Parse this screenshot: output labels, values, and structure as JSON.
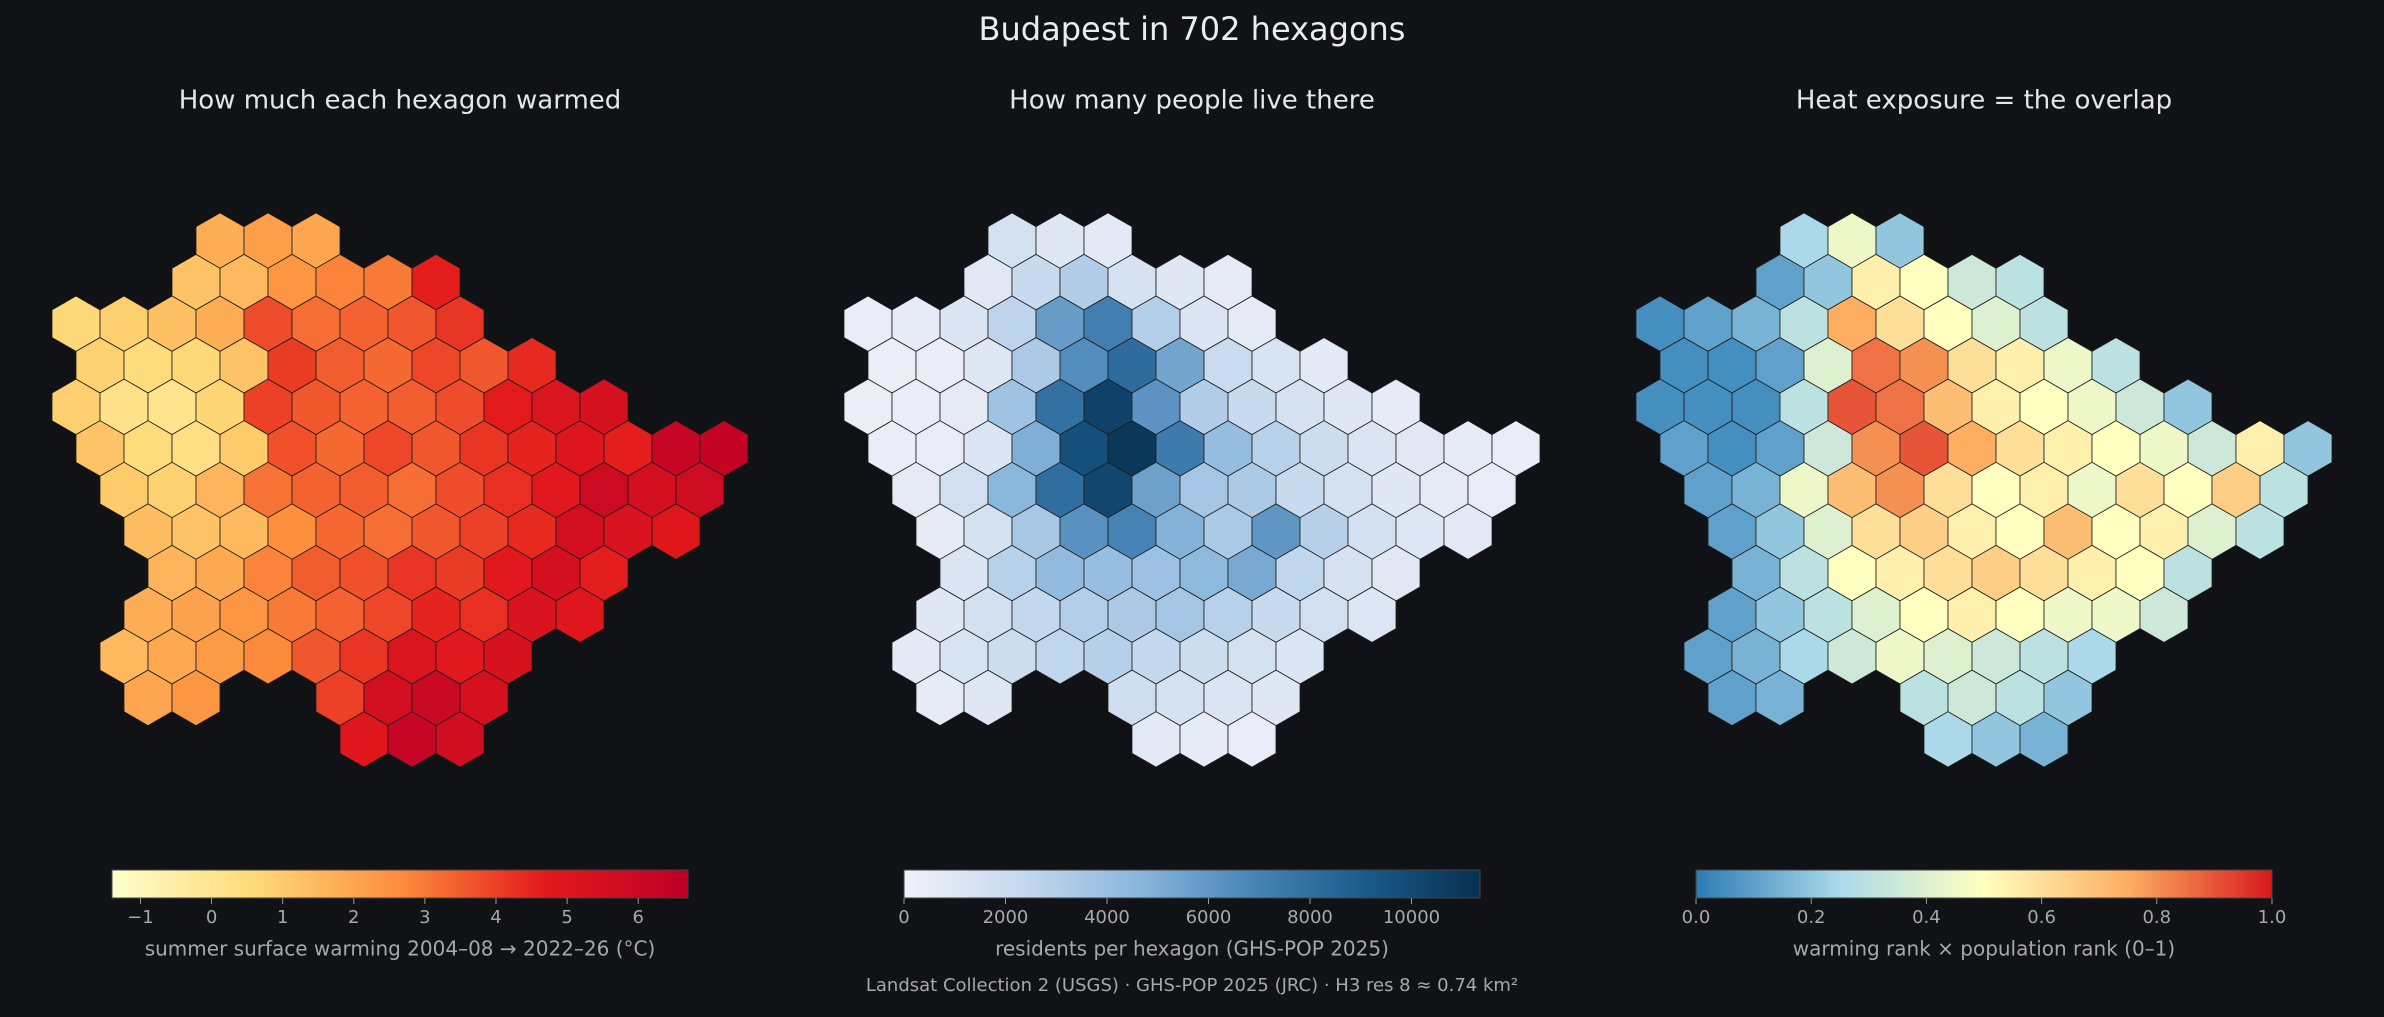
{
  "title": "Budapest in 702 hexagons",
  "source": "Landsat Collection 2 (USGS) · GHS-POP 2025 (JRC) · H3 res 8 ≈ 0.74 km²",
  "chart_data": [
    {
      "type": "hexmap",
      "title": "How much each hexagon warmed",
      "colorbar_label": "summer surface warming 2004–08 → 2022–26 (°C)",
      "colormap": [
        "#ffffcc",
        "#fed976",
        "#fd8d3c",
        "#e31a1c",
        "#bd0026"
      ],
      "xlim": [
        -1.4,
        6.7
      ],
      "xticks": [
        {
          "value": -1,
          "label": "−1"
        },
        0,
        1,
        2,
        3,
        4,
        5,
        6
      ],
      "values": [
        [
          null,
          null,
          null,
          1.8,
          2.2,
          2.0,
          null,
          null,
          null,
          null,
          null,
          null,
          null,
          null
        ],
        [
          null,
          null,
          1.2,
          1.5,
          2.4,
          2.8,
          3.0,
          4.6,
          null,
          null,
          null,
          null,
          null,
          null
        ],
        [
          0.6,
          0.9,
          1.3,
          1.8,
          3.8,
          3.2,
          3.4,
          3.6,
          4.2,
          null,
          null,
          null,
          null,
          null
        ],
        [
          0.8,
          0.5,
          0.6,
          1.2,
          4.1,
          3.5,
          3.3,
          3.9,
          3.6,
          4.4,
          null,
          null,
          null,
          null
        ],
        [
          0.9,
          0.2,
          0.1,
          0.7,
          4.0,
          3.6,
          3.4,
          3.5,
          3.8,
          4.7,
          5.1,
          5.4,
          null,
          null
        ],
        [
          1.2,
          0.5,
          0.3,
          1.0,
          3.7,
          3.3,
          3.9,
          3.6,
          4.2,
          4.5,
          5.0,
          4.6,
          6.2,
          6.4
        ],
        [
          null,
          1.0,
          0.8,
          1.6,
          3.1,
          3.4,
          3.5,
          3.2,
          3.8,
          4.3,
          4.8,
          5.9,
          5.5,
          5.8
        ],
        [
          null,
          1.4,
          1.2,
          1.5,
          2.6,
          3.3,
          3.2,
          3.6,
          4.0,
          4.4,
          5.6,
          5.2,
          4.9,
          null
        ],
        [
          null,
          null,
          1.6,
          1.9,
          2.8,
          3.5,
          3.7,
          4.2,
          4.1,
          4.8,
          5.5,
          4.6,
          null,
          null
        ],
        [
          null,
          1.8,
          2.1,
          2.4,
          3.0,
          3.4,
          3.9,
          4.5,
          4.3,
          5.2,
          4.9,
          null,
          null,
          null
        ],
        [
          null,
          1.5,
          1.9,
          2.3,
          2.7,
          3.6,
          4.2,
          5.1,
          4.8,
          5.3,
          null,
          null,
          null,
          null
        ],
        [
          null,
          2.0,
          2.4,
          null,
          null,
          4.0,
          5.6,
          6.0,
          5.4,
          null,
          null,
          null,
          null,
          null
        ],
        [
          null,
          null,
          null,
          null,
          null,
          null,
          4.9,
          6.2,
          5.7,
          null,
          null,
          null,
          null,
          null
        ]
      ]
    },
    {
      "type": "hexmap",
      "title": "How many people live there",
      "colorbar_label": "residents per hexagon (GHS-POP 2025)",
      "colormap": [
        "#f0f0f8",
        "#c6d9ee",
        "#8cb8dd",
        "#4a86b8",
        "#1a5b8c",
        "#08304f"
      ],
      "xlim": [
        0,
        11350
      ],
      "xticks": [
        0,
        2000,
        4000,
        6000,
        8000,
        10000
      ],
      "values": [
        [
          null,
          null,
          null,
          1500,
          900,
          700,
          null,
          null,
          null,
          null,
          null,
          null,
          null,
          null
        ],
        [
          null,
          null,
          800,
          2200,
          3100,
          1400,
          900,
          600,
          null,
          null,
          null,
          null,
          null,
          null
        ],
        [
          300,
          500,
          1200,
          2600,
          5800,
          7200,
          3000,
          1200,
          600,
          null,
          null,
          null,
          null,
          null
        ],
        [
          200,
          300,
          900,
          3300,
          6500,
          8200,
          5400,
          2100,
          1300,
          700,
          null,
          null,
          null,
          null
        ],
        [
          200,
          300,
          600,
          3800,
          7900,
          10400,
          6200,
          3100,
          2200,
          1400,
          900,
          500,
          null,
          null
        ],
        [
          300,
          400,
          1100,
          5000,
          9700,
          11000,
          7400,
          4200,
          2800,
          1900,
          1200,
          800,
          500,
          300
        ],
        [
          null,
          600,
          1700,
          4600,
          8100,
          10200,
          5600,
          3600,
          3300,
          2200,
          1500,
          900,
          600,
          400
        ],
        [
          null,
          500,
          1500,
          3500,
          6300,
          7000,
          4800,
          3400,
          6100,
          2900,
          1600,
          1000,
          700,
          null
        ],
        [
          null,
          null,
          1200,
          2800,
          4300,
          4100,
          3900,
          4500,
          5200,
          2500,
          1400,
          800,
          null,
          null
        ],
        [
          null,
          900,
          1600,
          2400,
          3000,
          3300,
          3600,
          2800,
          2200,
          1700,
          1000,
          null,
          null,
          null
        ],
        [
          null,
          700,
          1300,
          1900,
          2500,
          2900,
          2300,
          1900,
          1500,
          1100,
          null,
          null,
          null,
          null
        ],
        [
          null,
          500,
          900,
          null,
          null,
          1800,
          1500,
          1200,
          900,
          null,
          null,
          null,
          null,
          null
        ],
        [
          null,
          null,
          null,
          null,
          null,
          null,
          700,
          500,
          400,
          null,
          null,
          null,
          null,
          null
        ]
      ]
    },
    {
      "type": "hexmap",
      "title": "Heat exposure = the overlap",
      "colorbar_label": "warming rank × population rank (0–1)",
      "colormap": [
        "#2c7bb6",
        "#abd9e9",
        "#ffffbf",
        "#fdae61",
        "#d7191c"
      ],
      "xlim": [
        0,
        1
      ],
      "xticks": [
        {
          "value": 0,
          "label": "0.0"
        },
        0.2,
        0.4,
        0.6,
        0.8,
        {
          "value": 1,
          "label": "1.0"
        }
      ],
      "values": [
        [
          null,
          null,
          null,
          0.25,
          0.45,
          0.2,
          null,
          null,
          null,
          null,
          null,
          null,
          null,
          null
        ],
        [
          null,
          null,
          0.1,
          0.2,
          0.55,
          0.5,
          0.35,
          0.3,
          null,
          null,
          null,
          null,
          null,
          null
        ],
        [
          0.05,
          0.1,
          0.15,
          0.3,
          0.75,
          0.6,
          0.5,
          0.4,
          0.3,
          null,
          null,
          null,
          null,
          null
        ],
        [
          0.05,
          0.05,
          0.1,
          0.4,
          0.85,
          0.8,
          0.6,
          0.55,
          0.45,
          0.3,
          null,
          null,
          null,
          null
        ],
        [
          0.05,
          0.05,
          0.05,
          0.3,
          0.9,
          0.85,
          0.7,
          0.55,
          0.5,
          0.45,
          0.35,
          0.2,
          null,
          null
        ],
        [
          0.1,
          0.05,
          0.1,
          0.35,
          0.8,
          0.9,
          0.75,
          0.6,
          0.55,
          0.5,
          0.45,
          0.35,
          0.55,
          0.2
        ],
        [
          null,
          0.1,
          0.15,
          0.45,
          0.7,
          0.8,
          0.6,
          0.5,
          0.55,
          0.45,
          0.6,
          0.5,
          0.65,
          0.3
        ],
        [
          null,
          0.1,
          0.2,
          0.4,
          0.6,
          0.65,
          0.55,
          0.5,
          0.7,
          0.5,
          0.55,
          0.4,
          0.3,
          null
        ],
        [
          null,
          null,
          0.15,
          0.3,
          0.5,
          0.55,
          0.6,
          0.65,
          0.6,
          0.55,
          0.5,
          0.3,
          null,
          null
        ],
        [
          null,
          0.1,
          0.2,
          0.3,
          0.4,
          0.5,
          0.55,
          0.5,
          0.45,
          0.45,
          0.35,
          null,
          null,
          null
        ],
        [
          null,
          0.1,
          0.15,
          0.25,
          0.35,
          0.45,
          0.4,
          0.35,
          0.3,
          0.25,
          null,
          null,
          null,
          null
        ],
        [
          null,
          0.1,
          0.15,
          null,
          null,
          0.3,
          0.35,
          0.3,
          0.2,
          null,
          null,
          null,
          null,
          null
        ],
        [
          null,
          null,
          null,
          null,
          null,
          null,
          0.25,
          0.2,
          0.15,
          null,
          null,
          null,
          null,
          null
        ]
      ]
    }
  ]
}
